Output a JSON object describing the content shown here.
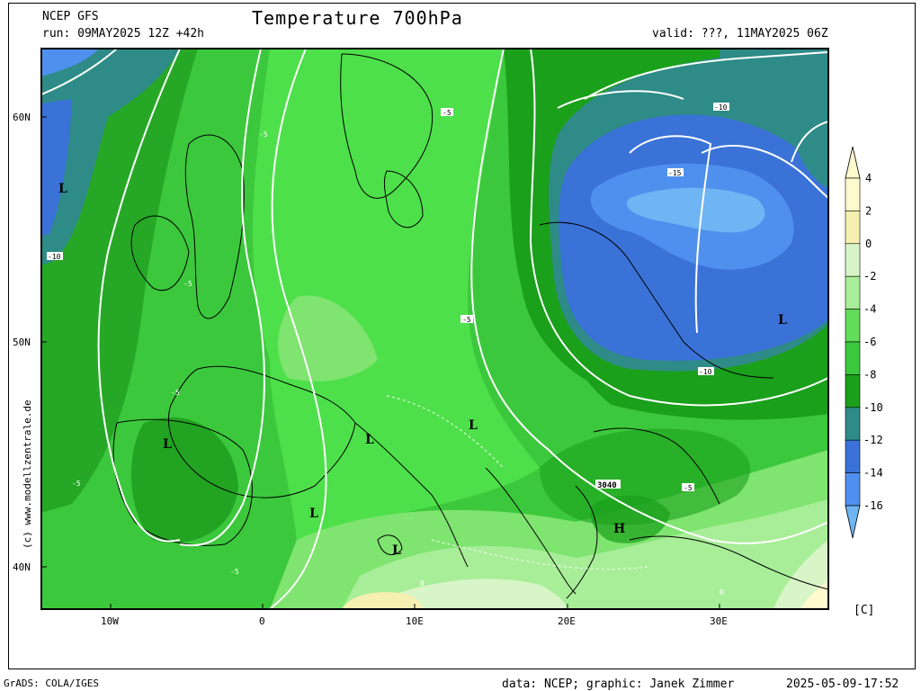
{
  "header": {
    "model": "NCEP GFS",
    "run": "run: 09MAY2025 12Z +42h",
    "title": "Temperature 700hPa",
    "valid": "valid: ???, 11MAY2025 06Z"
  },
  "axes": {
    "lat_labels": [
      "60N",
      "50N",
      "40N"
    ],
    "lon_labels": [
      "10W",
      "0",
      "10E",
      "20E",
      "30E"
    ]
  },
  "colorbar": {
    "unit": "[C]",
    "levels": [
      "4",
      "2",
      "0",
      "-2",
      "-4",
      "-6",
      "-8",
      "-10",
      "-12",
      "-14",
      "-16"
    ],
    "colors": [
      "#fffacd",
      "#f5f0b0",
      "#d8f5c8",
      "#a8ee98",
      "#62dd5a",
      "#3cc83c",
      "#1aa01a",
      "#2e8b87",
      "#3a72d8",
      "#4f90ee",
      "#6fb4f3"
    ]
  },
  "contour_labels": [
    "-5",
    "-5",
    "-5",
    "-5",
    "-5",
    "-5",
    "-5",
    "-5",
    "-10",
    "-10",
    "-10",
    "-15",
    "0",
    "0",
    "3040"
  ],
  "pressure_labels": [
    "L",
    "L",
    "L",
    "L",
    "L",
    "L",
    "L",
    "L",
    "H"
  ],
  "watermark": "(c) www.modellzentrale.de",
  "footer": {
    "software": "GrADS: COLA/IGES",
    "credit": "data: NCEP; graphic: Janek Zimmer",
    "timestamp": "2025-05-09-17:52"
  }
}
